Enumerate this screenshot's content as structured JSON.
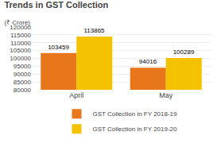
{
  "chart_data": {
    "type": "bar",
    "title": "Trends in GST Collection",
    "subtitle": "(₹ Crore)",
    "categories": [
      "April",
      "May"
    ],
    "series": [
      {
        "name": "GST Collection in FY 2018-19",
        "color": "#E8761A",
        "values": [
          103459,
          94016
        ]
      },
      {
        "name": "GST Collection in FY 2019-20",
        "color": "#F5C200",
        "values": [
          113865,
          100289
        ]
      }
    ],
    "ylim": [
      80000,
      120000
    ],
    "yticks": [
      80000,
      85000,
      90000,
      95000,
      100000,
      105000,
      110000,
      115000,
      120000
    ],
    "grid": true,
    "legend": "bottom",
    "data_labels": true
  }
}
